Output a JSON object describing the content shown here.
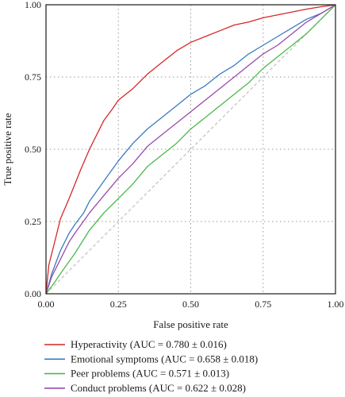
{
  "chart_data": {
    "type": "line",
    "xlabel": "False positive rate",
    "ylabel": "True positive rate",
    "xlim": [
      0,
      1
    ],
    "ylim": [
      0,
      1
    ],
    "xticks": [
      "0.00",
      "0.25",
      "0.50",
      "0.75",
      "1.00"
    ],
    "yticks": [
      "0.00",
      "0.25",
      "0.50",
      "0.75",
      "1.00"
    ],
    "grid": true,
    "legend_position": "bottom",
    "diagonal_reference": true,
    "series": [
      {
        "name": "Hyperactivity (AUC = 0.780 ± 0.016)",
        "color": "#d62728",
        "x": [
          0,
          0.01,
          0.03,
          0.05,
          0.08,
          0.1,
          0.12,
          0.15,
          0.18,
          0.2,
          0.23,
          0.25,
          0.3,
          0.35,
          0.4,
          0.45,
          0.5,
          0.55,
          0.6,
          0.65,
          0.7,
          0.75,
          0.8,
          0.85,
          0.9,
          0.95,
          1.0
        ],
        "y": [
          0,
          0.1,
          0.18,
          0.26,
          0.33,
          0.38,
          0.43,
          0.5,
          0.56,
          0.6,
          0.64,
          0.67,
          0.71,
          0.76,
          0.8,
          0.84,
          0.87,
          0.89,
          0.91,
          0.93,
          0.94,
          0.955,
          0.965,
          0.975,
          0.985,
          0.993,
          1.0
        ]
      },
      {
        "name": "Emotional symptoms (AUC = 0.658 ± 0.018)",
        "color": "#3a7bbf",
        "x": [
          0,
          0.02,
          0.05,
          0.08,
          0.1,
          0.13,
          0.15,
          0.2,
          0.25,
          0.3,
          0.35,
          0.4,
          0.45,
          0.5,
          0.55,
          0.6,
          0.65,
          0.7,
          0.75,
          0.8,
          0.85,
          0.9,
          0.95,
          1.0
        ],
        "y": [
          0,
          0.07,
          0.15,
          0.21,
          0.24,
          0.28,
          0.32,
          0.39,
          0.46,
          0.52,
          0.57,
          0.61,
          0.65,
          0.69,
          0.72,
          0.76,
          0.79,
          0.83,
          0.86,
          0.89,
          0.92,
          0.95,
          0.97,
          1.0
        ]
      },
      {
        "name": "Peer problems (AUC = 0.571 ± 0.013)",
        "color": "#4cb84c",
        "x": [
          0,
          0.03,
          0.05,
          0.1,
          0.15,
          0.2,
          0.25,
          0.3,
          0.35,
          0.4,
          0.45,
          0.5,
          0.55,
          0.6,
          0.65,
          0.7,
          0.75,
          0.8,
          0.85,
          0.9,
          0.95,
          1.0
        ],
        "y": [
          0,
          0.04,
          0.07,
          0.14,
          0.22,
          0.28,
          0.33,
          0.38,
          0.44,
          0.48,
          0.52,
          0.57,
          0.61,
          0.65,
          0.69,
          0.73,
          0.78,
          0.82,
          0.86,
          0.9,
          0.95,
          1.0
        ]
      },
      {
        "name": "Conduct problems (AUC = 0.622 ± 0.028)",
        "color": "#9b4aa8",
        "x": [
          0,
          0.02,
          0.05,
          0.08,
          0.1,
          0.15,
          0.2,
          0.25,
          0.3,
          0.35,
          0.4,
          0.45,
          0.5,
          0.55,
          0.6,
          0.65,
          0.7,
          0.75,
          0.8,
          0.85,
          0.9,
          0.95,
          1.0
        ],
        "y": [
          0,
          0.06,
          0.12,
          0.18,
          0.21,
          0.28,
          0.34,
          0.4,
          0.45,
          0.51,
          0.55,
          0.59,
          0.63,
          0.67,
          0.71,
          0.75,
          0.79,
          0.83,
          0.86,
          0.9,
          0.94,
          0.97,
          1.0
        ]
      }
    ]
  }
}
